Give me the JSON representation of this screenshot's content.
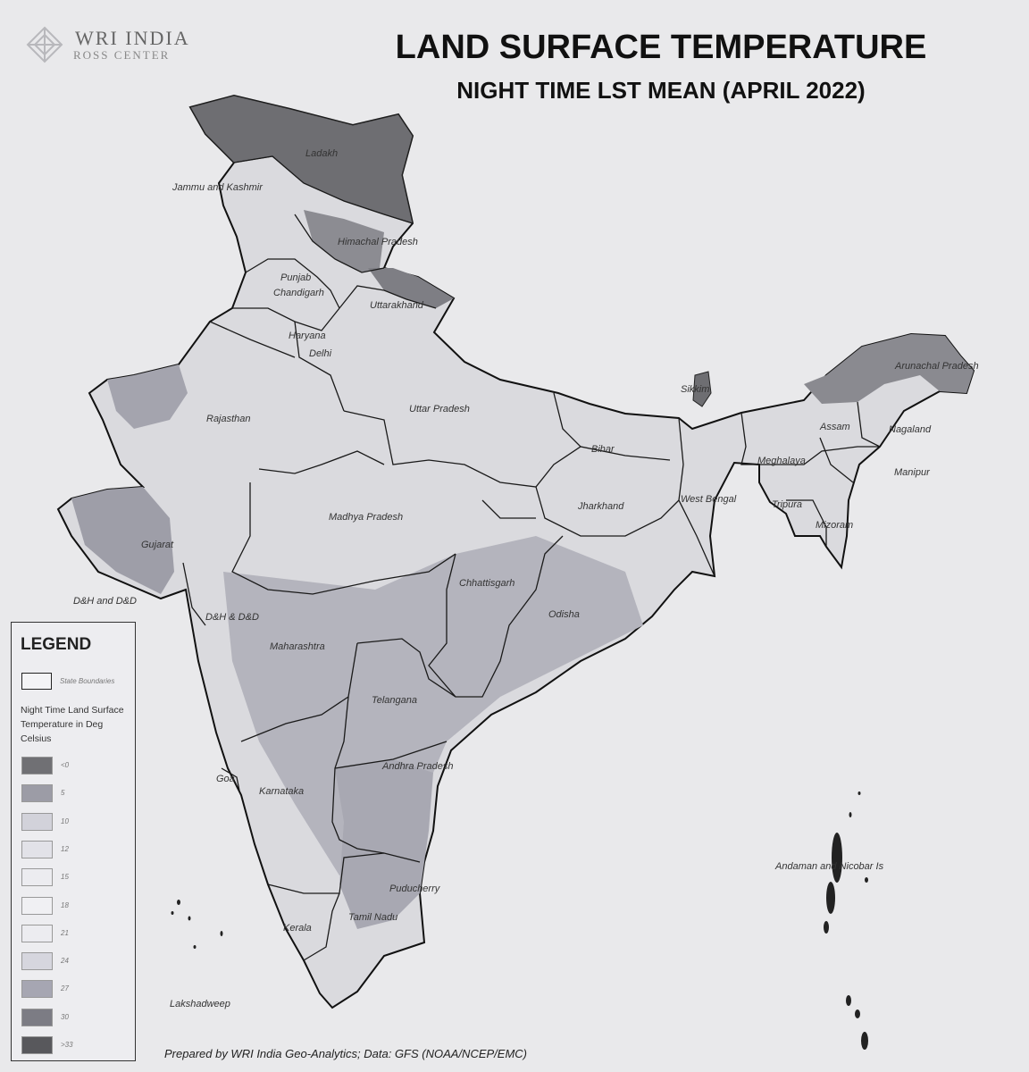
{
  "logo": {
    "name": "WRI INDIA",
    "sub": "ROSS CENTER"
  },
  "title": "LAND SURFACE TEMPERATURE",
  "subtitle": "NIGHT TIME LST MEAN (APRIL 2022)",
  "regions": [
    "Ladakh",
    "Jammu and Kashmir",
    "Himachal Pradesh",
    "Punjab",
    "Chandigarh",
    "Uttarakhand",
    "Haryana",
    "Delhi",
    "Rajasthan",
    "Uttar Pradesh",
    "Sikkim",
    "Arunachal Pradesh",
    "Assam",
    "Nagaland",
    "Bihar",
    "Meghalaya",
    "Manipur",
    "West Bengal",
    "Jharkhand",
    "Tripura",
    "Mizoram",
    "Gujarat",
    "Madhya Pradesh",
    "Chhattisgarh",
    "Odisha",
    "D&H and D&D",
    "D&H & D&D",
    "Maharashtra",
    "Telangana",
    "Andhra Pradesh",
    "Goa",
    "Karnataka",
    "Andaman and Nicobar Is",
    "Puducherry",
    "Tamil Nadu",
    "Kerala",
    "Lakshadweep"
  ],
  "legend": {
    "title": "LEGEND",
    "boundary_label": "State Boundaries",
    "description": "Night Time Land Surface Temperature in Deg Celsius",
    "classes": [
      {
        "label": "<0",
        "color": "#707074"
      },
      {
        "label": "5",
        "color": "#9c9ca6"
      },
      {
        "label": "10",
        "color": "#d2d2da"
      },
      {
        "label": "12",
        "color": "#e2e2e8"
      },
      {
        "label": "15",
        "color": "#ececf0"
      },
      {
        "label": "18",
        "color": "#f0f0f3"
      },
      {
        "label": "21",
        "color": "#ececf0"
      },
      {
        "label": "24",
        "color": "#d6d6de"
      },
      {
        "label": "27",
        "color": "#a6a6b2"
      },
      {
        "label": "30",
        "color": "#7c7c84"
      },
      {
        "label": ">33",
        "color": "#58585c"
      }
    ]
  },
  "credit": "Prepared by WRI India Geo-Analytics; Data: GFS (NOAA/NCEP/EMC)"
}
